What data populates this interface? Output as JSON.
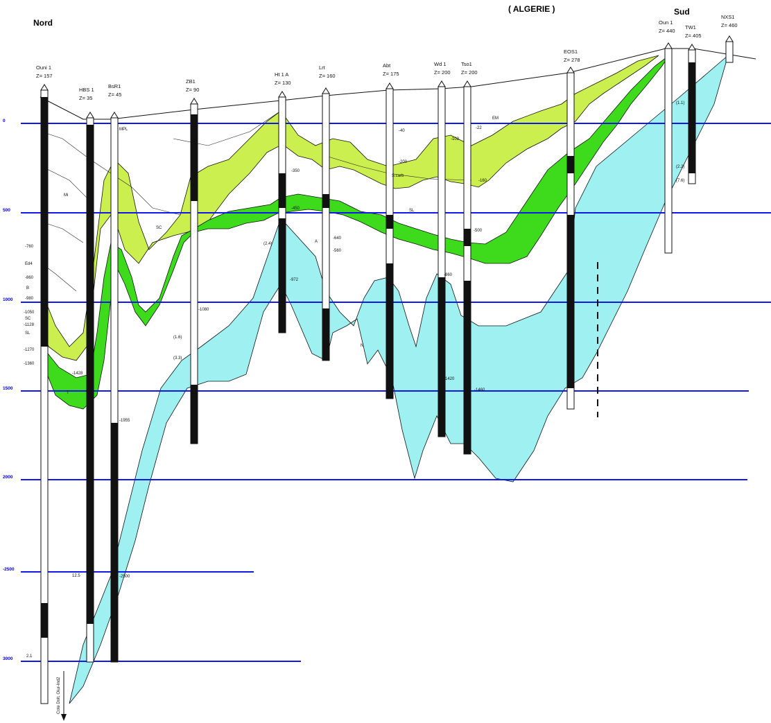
{
  "header": {
    "country": "( ALGERIE )",
    "north": "Nord",
    "south": "Sud"
  },
  "depth_lines": [
    {
      "label": "0"
    },
    {
      "label": "500"
    },
    {
      "label": "1000"
    },
    {
      "label": "1500"
    },
    {
      "label": "2000"
    },
    {
      "label": "-2500"
    },
    {
      "label": "3000"
    }
  ],
  "wells": [
    {
      "name": "Ouni 1",
      "z": "Z= 157"
    },
    {
      "name": "HBS 1",
      "z": "Z= 35"
    },
    {
      "name": "BsR1",
      "z": "Z= 45"
    },
    {
      "name": "ZB1",
      "z": "Z= 90"
    },
    {
      "name": "Ht 1 A",
      "z": "Z= 130"
    },
    {
      "name": "Lrt",
      "z": "Z= 160"
    },
    {
      "name": "Abt",
      "z": "Z= 175"
    },
    {
      "name": "Wd 1",
      "z": "Z= 200"
    },
    {
      "name": "Tso1",
      "z": "Z= 200"
    },
    {
      "name": "EOS1",
      "z": "Z= 278"
    },
    {
      "name": "Oun 1",
      "z": "Z= 440"
    },
    {
      "name": "TW1",
      "z": "Z= 405"
    },
    {
      "name": "NXS1",
      "z": "Z= 460"
    }
  ],
  "annotations": {
    "left_column": [
      "-760",
      "Ed4",
      "-860",
      "B",
      "-980",
      "-1050",
      "SC",
      "-1128",
      "SL",
      "-1270",
      "-1360",
      "-1428"
    ],
    "formations": [
      "MPL",
      "Mi",
      "EM",
      "SC",
      "SL",
      "A",
      "N",
      "S.carb",
      "T"
    ],
    "depths": [
      "-40",
      "-200",
      "-350",
      "-450",
      "-560",
      "-640",
      "-860",
      "-972",
      "-1080",
      "-1420",
      "-1460",
      "-1955",
      "-2500",
      "-22",
      "-103",
      "-160",
      "-500"
    ],
    "values": [
      "(2.2)",
      "(1.6)",
      "(3.3)",
      "(2.4)",
      "12.5",
      "2.1",
      "(1.1)",
      "(7.6)"
    ],
    "vertical_caption": "Cote Dolt. Oiur-Ind2"
  },
  "colors": {
    "cyan_fill": "#9ff0f0",
    "light_green": "#cbef4f",
    "bright_green": "#3ddb1c",
    "blue_lines": "#1018e8"
  }
}
